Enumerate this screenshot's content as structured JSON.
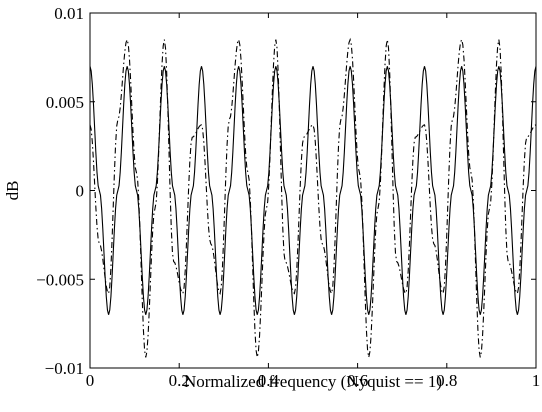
{
  "chart_data": {
    "type": "line",
    "title": "",
    "xlabel": "Normalized frequency (Nyquist == 1)",
    "ylabel": "dB",
    "xlim": [
      0,
      1
    ],
    "ylim": [
      -0.01,
      0.01
    ],
    "grid": false,
    "legend": "none",
    "x_ticks": [
      0,
      0.2,
      0.4,
      0.6,
      0.8,
      1
    ],
    "x_tick_labels": [
      "0",
      "0.2",
      "0.4",
      "0.6",
      "0.8",
      "1"
    ],
    "y_ticks": [
      -0.01,
      -0.005,
      0,
      0.005,
      0.01
    ],
    "y_tick_labels": [
      "−0.01",
      "−0.005",
      "0",
      "0.005",
      "0.01"
    ],
    "series": [
      {
        "style": "solid",
        "color": "#000000",
        "x": [
          0,
          0.0209,
          0.0417,
          0.0625,
          0.0833,
          0.1042,
          0.125,
          0.1458,
          0.1667,
          0.1875,
          0.2083,
          0.2292,
          0.25,
          0.2708,
          0.2917,
          0.3125,
          0.3333,
          0.3542,
          0.375,
          0.3958,
          0.4167,
          0.4375,
          0.4583,
          0.4792,
          0.5,
          0.5208,
          0.5417,
          0.5625,
          0.5833,
          0.6042,
          0.625,
          0.6458,
          0.6667,
          0.6875,
          0.7083,
          0.7292,
          0.75,
          0.7708,
          0.7917,
          0.8125,
          0.8333,
          0.8542,
          0.875,
          0.8958,
          0.9167,
          0.9375,
          0.9583,
          0.9792,
          1
        ],
        "y": [
          0.007,
          0,
          -0.007,
          0,
          0.007,
          0,
          -0.007,
          0,
          0.007,
          0,
          -0.007,
          0,
          0.007,
          0,
          -0.007,
          0,
          0.007,
          0,
          -0.007,
          0,
          0.007,
          0,
          -0.007,
          0,
          0.007,
          0,
          -0.007,
          0,
          0.007,
          0,
          -0.007,
          0,
          0.007,
          0,
          -0.007,
          0,
          0.007,
          0,
          -0.007,
          0,
          0.007,
          0,
          -0.007,
          0,
          0.007,
          0,
          -0.007,
          0,
          0.007
        ]
      },
      {
        "style": "dashdot",
        "color": "#000000",
        "x": [
          0,
          0.0209,
          0.0417,
          0.0625,
          0.0833,
          0.1042,
          0.125,
          0.1458,
          0.1667,
          0.1875,
          0.2083,
          0.2292,
          0.25,
          0.2708,
          0.2917,
          0.3125,
          0.3333,
          0.3542,
          0.375,
          0.3958,
          0.4167,
          0.4375,
          0.4583,
          0.4792,
          0.5,
          0.5208,
          0.5417,
          0.5625,
          0.5833,
          0.6042,
          0.625,
          0.6458,
          0.6667,
          0.6875,
          0.7083,
          0.7292,
          0.75,
          0.7708,
          0.7917,
          0.8125,
          0.8333,
          0.8542,
          0.875,
          0.8958,
          0.9167,
          0.9375,
          0.9583,
          0.9792,
          1
        ],
        "y": [
          0.0037,
          -0.003,
          -0.0058,
          0.004,
          0.0085,
          0.001,
          -0.0094,
          -0.001,
          0.0085,
          -0.004,
          -0.0058,
          0.003,
          0.0037,
          -0.003,
          -0.0058,
          0.004,
          0.0085,
          0.001,
          -0.0094,
          -0.001,
          0.0085,
          -0.004,
          -0.0058,
          0.003,
          0.0037,
          -0.003,
          -0.0058,
          0.004,
          0.0085,
          0.001,
          -0.0094,
          -0.001,
          0.0085,
          -0.004,
          -0.0058,
          0.003,
          0.0037,
          -0.003,
          -0.0058,
          0.004,
          0.0085,
          0.001,
          -0.0094,
          -0.001,
          0.0085,
          -0.004,
          -0.0058,
          0.003,
          0.0037
        ]
      }
    ]
  }
}
